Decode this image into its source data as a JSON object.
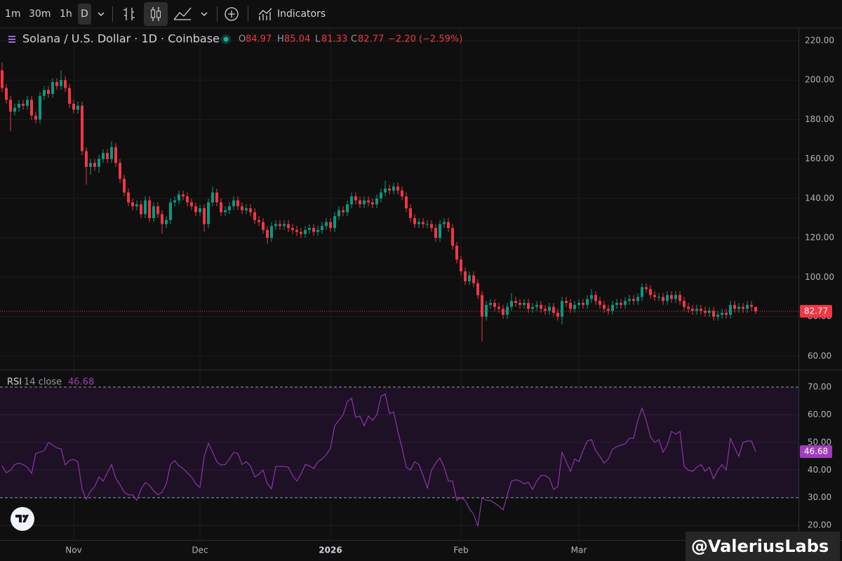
{
  "toolbar": {
    "intervals": [
      "1m",
      "30m",
      "1h",
      "D"
    ],
    "indicators": "Indicators"
  },
  "chart_data": [
    {
      "type": "candlestick",
      "title": "Solana / U.S. Dollar · 1D · Coinbase",
      "ohlc_labels": [
        "O",
        "H",
        "L",
        "C"
      ],
      "change": "−2.20 (−2.59%)",
      "categories": [
        null,
        null,
        null,
        null,
        null,
        null,
        null,
        null,
        null,
        null,
        null,
        null,
        null,
        null,
        null,
        null,
        null,
        "Nov",
        null,
        null,
        null,
        null,
        null,
        null,
        null,
        null,
        null,
        null,
        null,
        null,
        null,
        null,
        null,
        null,
        null,
        null,
        null,
        null,
        null,
        null,
        null,
        null,
        null,
        null,
        null,
        null,
        null,
        "Dec",
        null,
        null,
        null,
        null,
        null,
        null,
        null,
        null,
        null,
        null,
        null,
        null,
        null,
        null,
        null,
        null,
        null,
        null,
        null,
        null,
        null,
        null,
        null,
        null,
        null,
        null,
        null,
        null,
        null,
        null,
        "2026",
        null,
        null,
        null,
        null,
        null,
        null,
        null,
        null,
        null,
        null,
        null,
        null,
        null,
        null,
        null,
        null,
        null,
        null,
        null,
        null,
        null,
        null,
        null,
        null,
        null,
        null,
        null,
        null,
        null,
        null,
        "Feb",
        null,
        null,
        null,
        null,
        null,
        null,
        null,
        null,
        null,
        null,
        null,
        null,
        null,
        null,
        null,
        null,
        null,
        null,
        null,
        null,
        null,
        null,
        null,
        null,
        null,
        null,
        null,
        "Mar",
        null,
        null,
        null,
        null,
        null,
        null,
        null,
        null,
        null,
        null,
        null,
        null,
        null,
        null,
        null,
        null,
        null,
        null,
        null,
        null,
        null,
        null,
        null,
        null,
        null,
        null,
        null,
        null,
        null,
        null,
        null,
        null,
        null,
        null,
        null,
        null,
        null,
        null,
        null,
        null,
        null,
        null
      ],
      "open": [
        205,
        196,
        190,
        184,
        186,
        188,
        187,
        190,
        182,
        180,
        192,
        195,
        193,
        199,
        197,
        200,
        196,
        188,
        185,
        187,
        164,
        156,
        158,
        156,
        160,
        163,
        160,
        166,
        158,
        150,
        143,
        138,
        136,
        137,
        132,
        139,
        130,
        136,
        132,
        127,
        129,
        138,
        139,
        142,
        141,
        138,
        136,
        133,
        135,
        127,
        138,
        143,
        138,
        133,
        134,
        136,
        139,
        136,
        134,
        135,
        133,
        129,
        128,
        124,
        120,
        126,
        127,
        126,
        127,
        125,
        124,
        123,
        122,
        124,
        125,
        123,
        124,
        126,
        128,
        125,
        131,
        134,
        133,
        137,
        141,
        139,
        137,
        139,
        138,
        137,
        140,
        143,
        145,
        144,
        146,
        144,
        141,
        135,
        130,
        127,
        128,
        127,
        127,
        125,
        120,
        127,
        128,
        125,
        116,
        109,
        103,
        98,
        101,
        97,
        91,
        80,
        86,
        87,
        85,
        84,
        81,
        85,
        88,
        87,
        86,
        87,
        84,
        85,
        86,
        84,
        83,
        85,
        82,
        80,
        88,
        87,
        84,
        86,
        87,
        86,
        89,
        91,
        88,
        86,
        84,
        83,
        86,
        87,
        86,
        88,
        89,
        88,
        90,
        95,
        94,
        91,
        90,
        90,
        88,
        91,
        89,
        91,
        88,
        85,
        84,
        83,
        84,
        83,
        82,
        83,
        80,
        81,
        82,
        81,
        86,
        84,
        85,
        84,
        86,
        84.97
      ],
      "high": [
        209,
        198,
        192,
        188,
        190,
        190,
        192,
        192,
        184,
        194,
        197,
        197,
        201,
        201,
        205,
        202,
        198,
        190,
        189,
        189,
        166,
        160,
        160,
        162,
        165,
        165,
        169,
        168,
        160,
        152,
        145,
        140,
        139,
        139,
        141,
        141,
        138,
        138,
        134,
        131,
        140,
        141,
        144,
        144,
        143,
        140,
        138,
        137,
        137,
        140,
        146,
        145,
        140,
        136,
        138,
        141,
        141,
        138,
        137,
        137,
        135,
        131,
        130,
        126,
        128,
        129,
        129,
        129,
        129,
        127,
        126,
        125,
        126,
        127,
        127,
        126,
        128,
        130,
        130,
        133,
        136,
        136,
        139,
        143,
        143,
        141,
        141,
        141,
        140,
        142,
        145,
        149,
        147,
        148,
        148,
        146,
        143,
        137,
        132,
        130,
        130,
        129,
        129,
        127,
        129,
        130,
        130,
        127,
        118,
        111,
        105,
        103,
        103,
        99,
        93,
        88,
        89,
        89,
        87,
        86,
        87,
        92,
        90,
        89,
        89,
        89,
        87,
        88,
        88,
        86,
        87,
        87,
        84,
        90,
        90,
        89,
        88,
        89,
        89,
        91,
        94,
        93,
        90,
        88,
        86,
        88,
        89,
        89,
        90,
        91,
        91,
        92,
        97,
        97,
        96,
        93,
        92,
        92,
        93,
        93,
        93,
        93,
        90,
        87,
        86,
        86,
        86,
        85,
        85,
        85,
        83,
        84,
        84,
        88,
        88,
        87,
        87,
        88,
        88,
        85.04
      ],
      "low": [
        194,
        188,
        174,
        182,
        184,
        185,
        185,
        180,
        178,
        178,
        190,
        191,
        191,
        195,
        195,
        194,
        186,
        183,
        183,
        162,
        147,
        152,
        154,
        153,
        158,
        158,
        158,
        156,
        148,
        141,
        136,
        134,
        134,
        130,
        130,
        128,
        128,
        130,
        122,
        125,
        127,
        136,
        137,
        139,
        136,
        134,
        131,
        131,
        123,
        125,
        136,
        136,
        131,
        131,
        132,
        134,
        134,
        132,
        132,
        131,
        127,
        126,
        122,
        117,
        118,
        124,
        124,
        124,
        123,
        122,
        121,
        120,
        120,
        122,
        121,
        121,
        122,
        124,
        123,
        123,
        129,
        131,
        131,
        135,
        137,
        135,
        135,
        136,
        135,
        135,
        138,
        141,
        142,
        142,
        142,
        139,
        133,
        128,
        125,
        125,
        125,
        125,
        123,
        118,
        118,
        125,
        123,
        114,
        107,
        101,
        96,
        96,
        95,
        89,
        67.5,
        78,
        84,
        83,
        82,
        79,
        79,
        83,
        85,
        84,
        84,
        82,
        82,
        83,
        82,
        81,
        81,
        80,
        78,
        76,
        85,
        82,
        82,
        84,
        84,
        84,
        87,
        86,
        84,
        82,
        81,
        81,
        84,
        84,
        84,
        86,
        86,
        86,
        88,
        92,
        89,
        88,
        88,
        86,
        86,
        87,
        87,
        86,
        83,
        82,
        81,
        81,
        81,
        80,
        80,
        78,
        78,
        79,
        79,
        79,
        82,
        82,
        82,
        82,
        83,
        81.33
      ],
      "close": [
        196,
        190,
        184,
        186,
        188,
        187,
        190,
        182,
        180,
        192,
        195,
        193,
        199,
        197,
        200,
        196,
        188,
        185,
        187,
        164,
        156,
        158,
        156,
        160,
        163,
        160,
        166,
        158,
        150,
        143,
        138,
        136,
        137,
        132,
        139,
        130,
        136,
        132,
        127,
        129,
        138,
        139,
        142,
        141,
        138,
        136,
        133,
        135,
        127,
        138,
        143,
        138,
        133,
        134,
        136,
        139,
        136,
        134,
        135,
        133,
        129,
        128,
        124,
        120,
        126,
        127,
        126,
        127,
        125,
        124,
        123,
        122,
        124,
        125,
        123,
        124,
        126,
        128,
        125,
        131,
        134,
        133,
        137,
        141,
        139,
        137,
        139,
        138,
        137,
        140,
        143,
        145,
        144,
        146,
        144,
        141,
        135,
        130,
        127,
        128,
        127,
        127,
        125,
        120,
        127,
        128,
        125,
        116,
        109,
        103,
        98,
        101,
        97,
        91,
        80,
        86,
        87,
        85,
        84,
        81,
        85,
        88,
        87,
        86,
        87,
        84,
        85,
        86,
        84,
        83,
        85,
        82,
        80,
        88,
        87,
        84,
        86,
        87,
        86,
        89,
        91,
        88,
        86,
        84,
        83,
        86,
        87,
        86,
        88,
        89,
        88,
        90,
        95,
        94,
        91,
        90,
        90,
        88,
        91,
        89,
        91,
        88,
        85,
        84,
        83,
        84,
        83,
        82,
        83,
        80,
        81,
        82,
        81,
        86,
        84,
        85,
        84,
        86,
        84.97,
        82.77
      ],
      "up_color": "#089981",
      "down_color": "#f23645",
      "ylim": [
        53.2,
        226.4
      ],
      "yticks": [
        {
          "value": 60,
          "label": "60.00"
        },
        {
          "value": 80,
          "label": "80.00"
        },
        {
          "value": 100,
          "label": "100.00"
        },
        {
          "value": 120,
          "label": "120.00"
        },
        {
          "value": 140,
          "label": "140.00"
        },
        {
          "value": 160,
          "label": "160.00"
        },
        {
          "value": 180,
          "label": "180.00"
        },
        {
          "value": 200,
          "label": "200.00"
        },
        {
          "value": 220,
          "label": "220.00"
        }
      ],
      "grid": true,
      "last_price_line": true
    },
    {
      "type": "line",
      "title": "RSI",
      "subtitle": "14 close",
      "series": [
        {
          "name": "RSI",
          "color": "#a23bbf",
          "values": [
            41.5,
            39,
            40,
            42,
            42.5,
            42,
            41,
            38.8,
            46,
            46.5,
            47,
            50,
            49,
            48,
            47.7,
            41.8,
            43.5,
            43.8,
            43,
            33,
            29.4,
            32.4,
            34,
            37.5,
            36,
            39,
            42,
            37,
            34.7,
            32,
            31,
            31,
            29,
            33,
            35.5,
            34.5,
            32.5,
            31,
            32,
            35,
            42,
            43.4,
            41.5,
            40.5,
            39,
            37.5,
            35,
            33.7,
            45,
            49.7,
            46.5,
            43,
            41.8,
            42,
            44,
            46.4,
            46,
            42,
            43,
            41.5,
            37.5,
            38.5,
            40,
            35,
            33.2,
            41.3,
            41.3,
            41.3,
            41,
            38,
            36,
            38.5,
            42,
            41.5,
            40.5,
            43,
            44,
            45.5,
            48,
            56,
            58,
            60,
            64.7,
            66,
            59,
            59.5,
            56,
            59.5,
            58,
            60,
            66.7,
            67.5,
            60.4,
            61,
            54,
            48,
            41,
            40,
            43,
            42,
            38,
            33.5,
            40,
            42.5,
            44.4,
            41,
            36,
            36,
            29,
            30,
            29,
            26,
            24,
            19.7,
            30,
            29,
            29,
            28,
            27,
            25.6,
            31,
            36,
            36.5,
            36,
            35,
            35.5,
            33,
            36,
            38,
            38,
            37,
            33,
            34,
            46.4,
            43,
            39.5,
            44,
            43,
            47,
            50.5,
            51,
            47,
            45,
            42.5,
            44,
            47.5,
            48.5,
            49,
            49.5,
            51.5,
            51.5,
            58,
            62.4,
            58,
            52,
            50,
            51,
            46.4,
            49,
            54,
            53,
            54,
            41.3,
            40,
            39.5,
            41,
            42,
            39.5,
            41,
            36.8,
            40,
            42,
            40,
            51.5,
            48,
            45,
            50,
            50.5,
            50.5,
            46.68
          ]
        }
      ],
      "ylim": [
        14.7,
        76.1
      ],
      "yticks": [
        {
          "value": 20,
          "label": "20.00"
        },
        {
          "value": 30,
          "label": "30.00"
        },
        {
          "value": 40,
          "label": "40.00"
        },
        {
          "value": 50,
          "label": "50.00"
        },
        {
          "value": 60,
          "label": "60.00"
        },
        {
          "value": 70,
          "label": "70.00"
        }
      ],
      "bands": [
        30,
        70
      ],
      "grid": true
    }
  ],
  "watermark": "@ValeriusLabs"
}
